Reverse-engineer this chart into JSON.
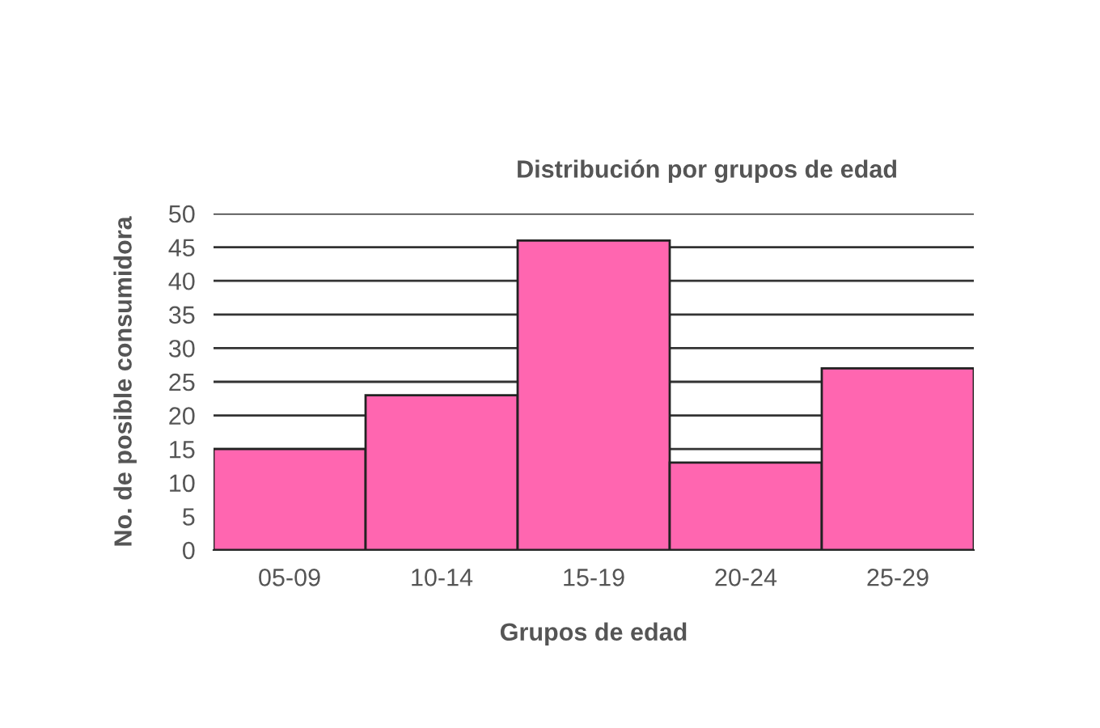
{
  "chart_data": {
    "type": "bar",
    "title": "Distribución por grupos de edad",
    "xlabel": "Grupos de edad",
    "ylabel": "No. de posible consumidora",
    "categories": [
      "05-09",
      "10-14",
      "15-19",
      "20-24",
      "25-29"
    ],
    "values": [
      15,
      23,
      46,
      13,
      27
    ],
    "color": "#ff66b0",
    "ylim": [
      0,
      50
    ],
    "yticks": [
      0,
      5,
      10,
      15,
      20,
      25,
      30,
      35,
      40,
      45,
      50
    ],
    "grid": "y"
  }
}
